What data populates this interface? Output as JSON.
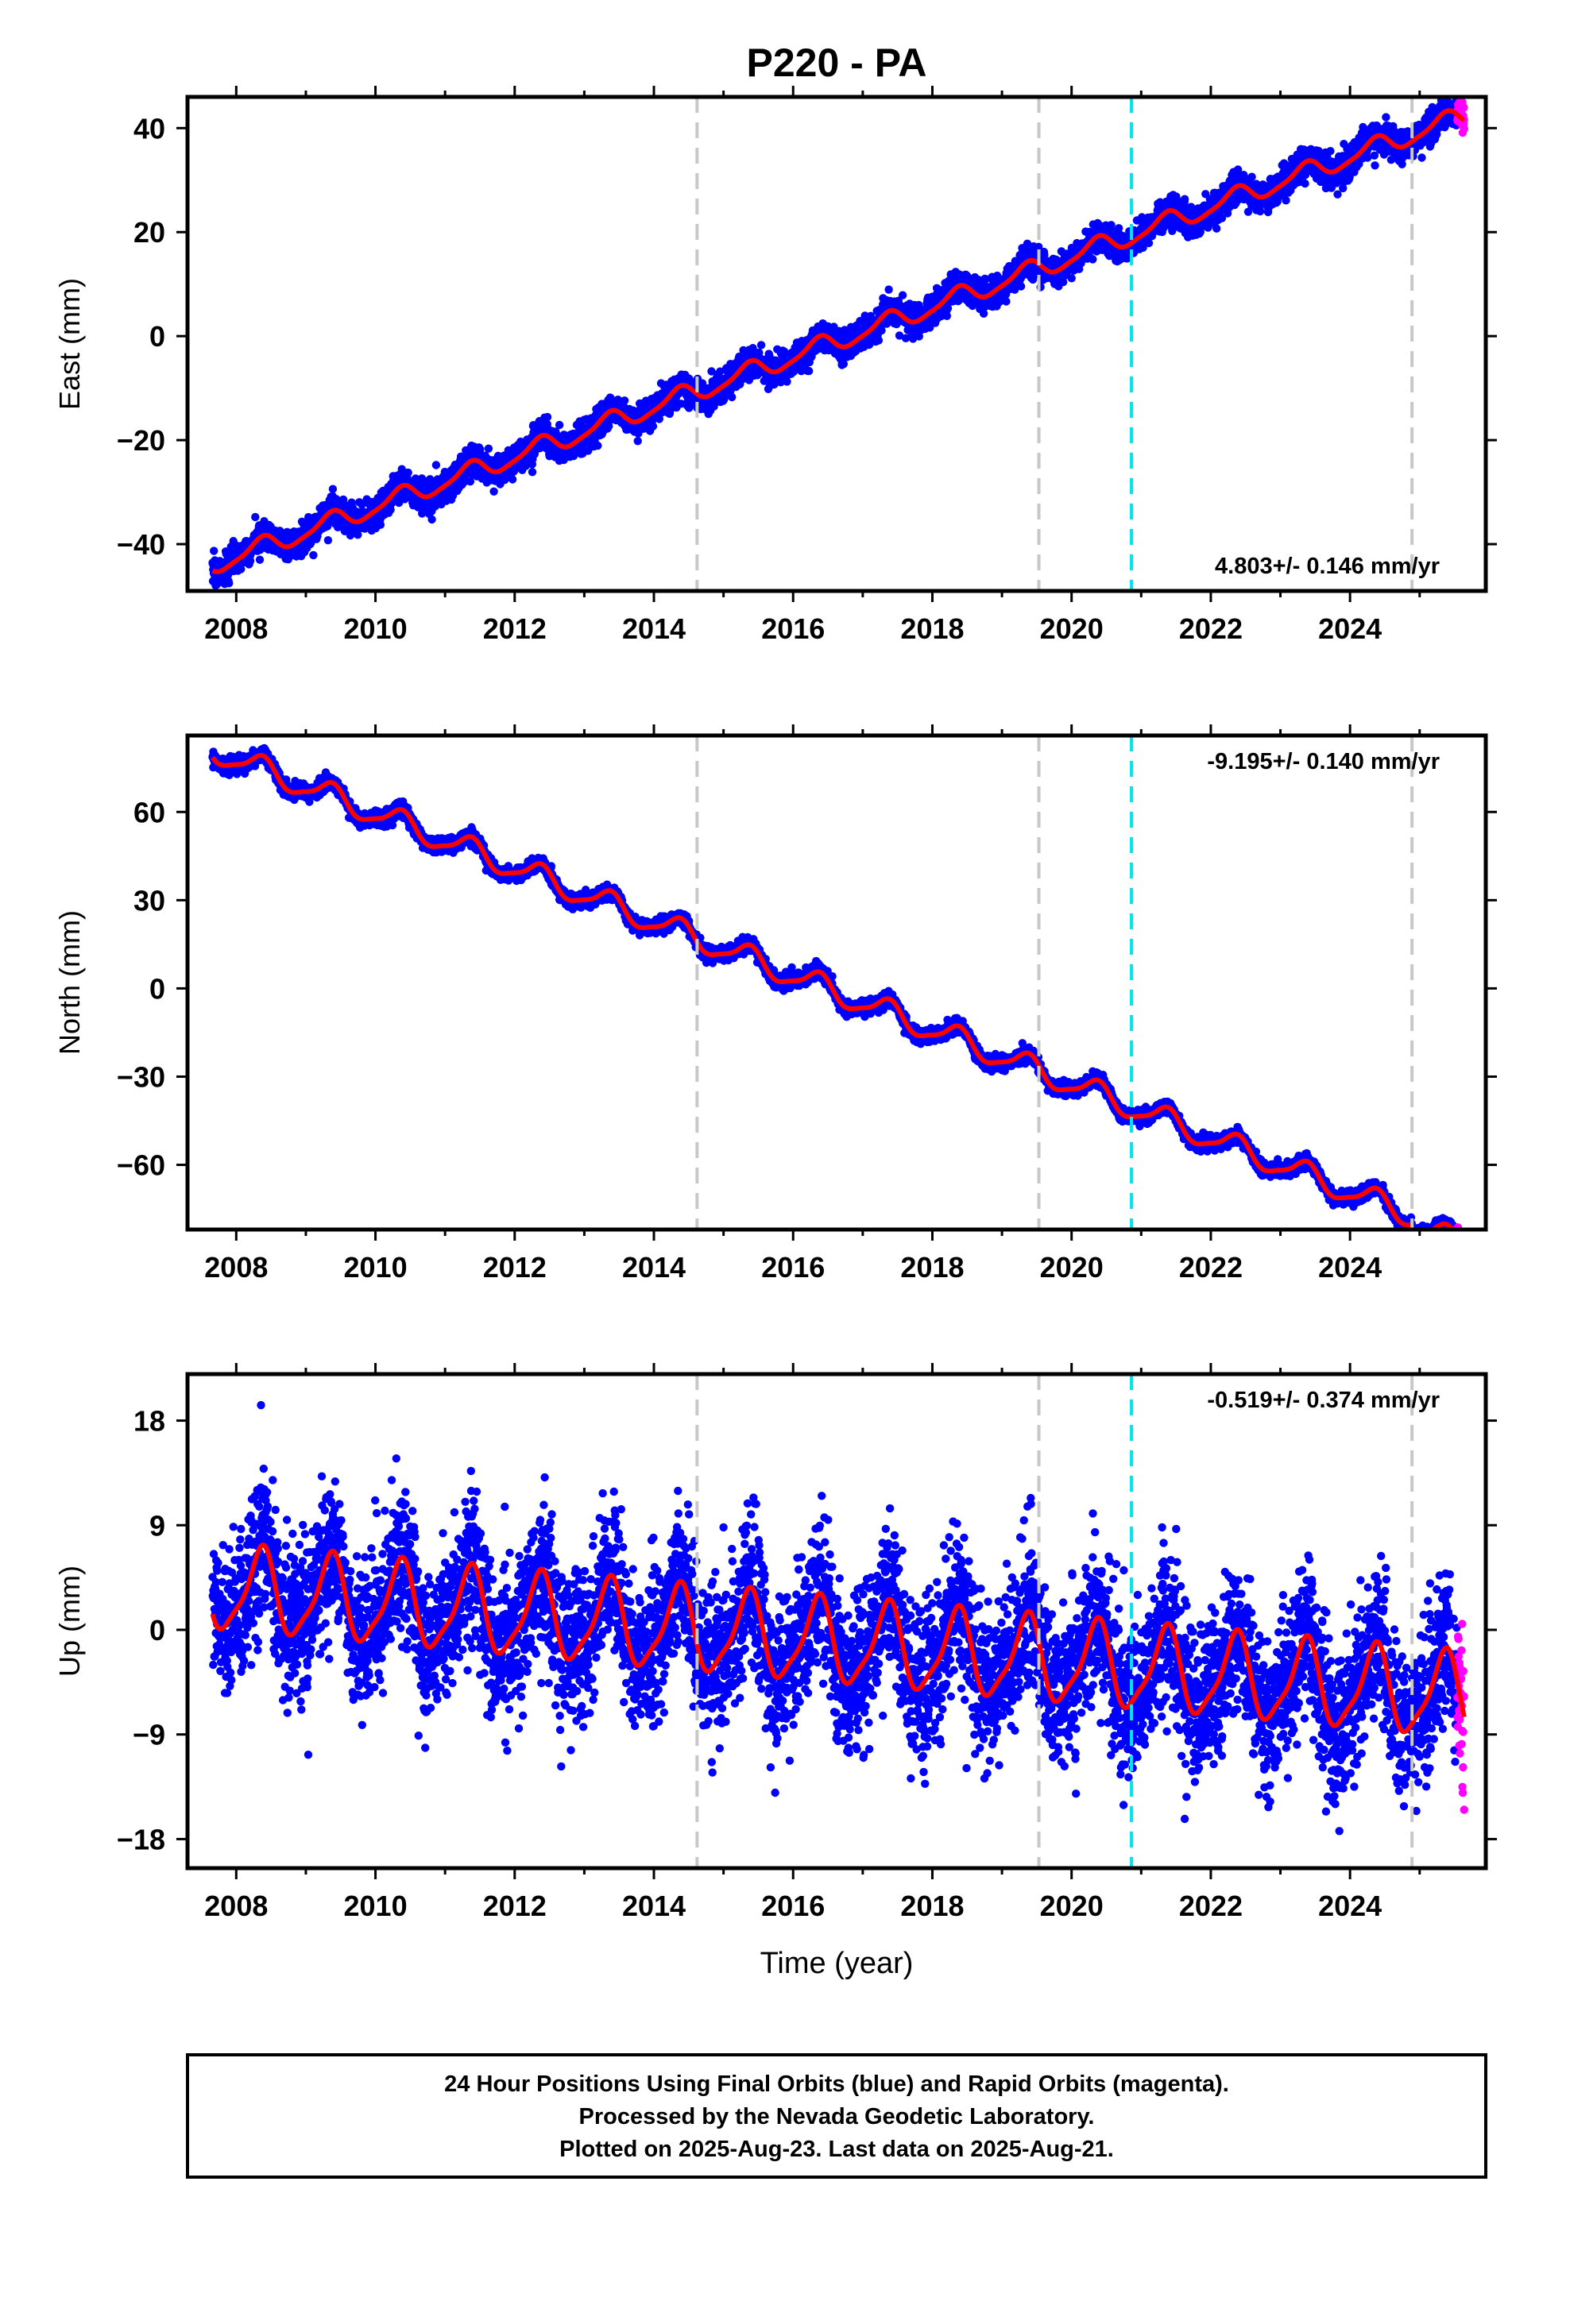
{
  "chart_data": {
    "title": "P220 - PA",
    "type": "scatter",
    "xlabel": "Time (year)",
    "x_ticks": [
      "2008",
      "2010",
      "2012",
      "2014",
      "2016",
      "2018",
      "2020",
      "2022",
      "2024"
    ],
    "xlim": [
      2007.3,
      2025.95
    ],
    "vertical_lines": [
      {
        "x": 2014.62,
        "color": "#c8c8c8",
        "style": "dashed"
      },
      {
        "x": 2019.53,
        "color": "#c8c8c8",
        "style": "dashed"
      },
      {
        "x": 2020.86,
        "color": "#00e5ee",
        "style": "dashed"
      },
      {
        "x": 2024.89,
        "color": "#c8c8c8",
        "style": "dashed"
      }
    ],
    "colors": {
      "final_orbits": "#0000ff",
      "rapid_orbits": "#ff00ff",
      "model_fit": "#ff0000"
    },
    "data_span": [
      2007.66,
      2025.64
    ],
    "rapid_orbit_span": [
      2025.54,
      2025.64
    ],
    "panels": [
      {
        "ylabel": "East (mm)",
        "ylim": [
          -49,
          46
        ],
        "yticks": [
          "40",
          "20",
          "0",
          "−20",
          "−40"
        ],
        "ytick_values": [
          40,
          20,
          0,
          -20,
          -40
        ],
        "rate": "4.803+/- 0.146 mm/yr",
        "rate_position": "bottom-right",
        "trend_mm_per_yr": 4.803,
        "intercept_mm": -44,
        "seasonal_amplitude_mm": 1.8,
        "scatter_mm": 1.4,
        "offsets": []
      },
      {
        "ylabel": "North (mm)",
        "ylim": [
          -82,
          86
        ],
        "yticks": [
          "60",
          "30",
          "0",
          "−30",
          "−60"
        ],
        "ytick_values": [
          60,
          30,
          0,
          -30,
          -60
        ],
        "rate": "-9.195+/- 0.140 mm/yr",
        "rate_position": "top-right",
        "trend_mm_per_yr": -9.195,
        "intercept_mm": 81,
        "seasonal_amplitude_mm": 4.0,
        "scatter_mm": 1.2,
        "offsets": [
          {
            "x": 2024.89,
            "dy": -3
          }
        ]
      },
      {
        "ylabel": "Up (mm)",
        "ylim": [
          -20.5,
          22
        ],
        "yticks": [
          "18",
          "9",
          "0",
          "−9",
          "−18"
        ],
        "ytick_values": [
          18,
          9,
          0,
          -9,
          -18
        ],
        "rate": "-0.519+/- 0.374 mm/yr",
        "rate_position": "top-right",
        "trend_mm_per_yr": -0.519,
        "intercept_mm": 3.5,
        "seasonal_amplitude_mm": 3.5,
        "scatter_mm": 3.2,
        "offsets": []
      }
    ]
  },
  "footer": {
    "line1": "24 Hour Positions Using Final Orbits (blue) and Rapid Orbits (magenta).",
    "line2": "Processed by the Nevada Geodetic Laboratory.",
    "line3": "Plotted on 2025-Aug-23. Last data on 2025-Aug-21."
  }
}
